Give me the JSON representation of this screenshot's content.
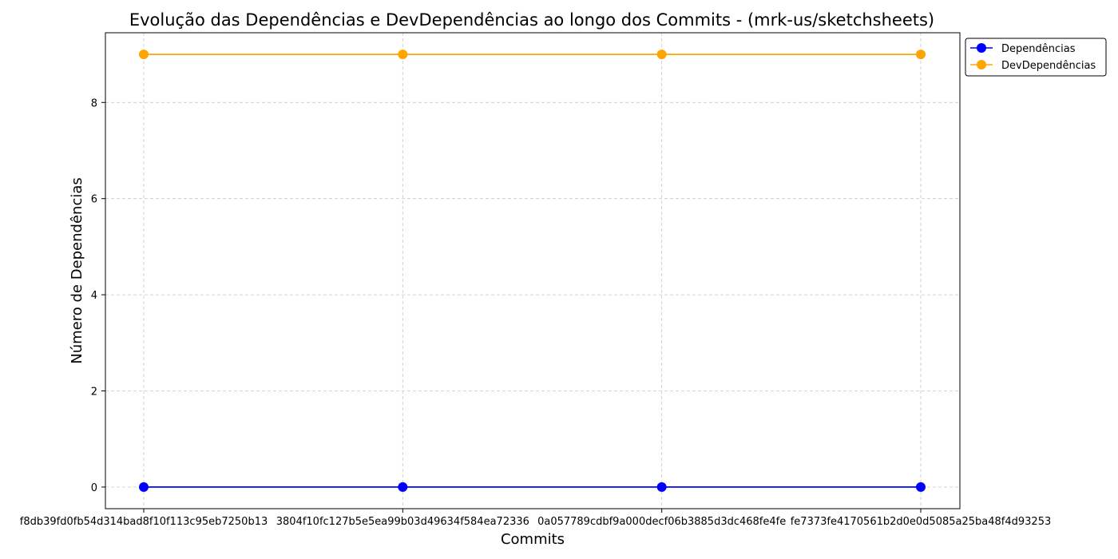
{
  "chart_data": {
    "type": "line",
    "title": "Evolução das Dependências e DevDependências ao longo dos Commits - (mrk-us/sketchsheets)",
    "xlabel": "Commits",
    "ylabel": "Número de Dependências",
    "categories": [
      "f8db39fd0fb54d314bad8f10f113c95eb7250b13",
      "3804f10fc127b5e5ea99b03d49634f584ea72336",
      "0a057789cdbf9a000decf06b3885d3dc468fe4fe",
      "fe7373fe4170561b2d0e0d5085a25ba48f4d93253"
    ],
    "series": [
      {
        "name": "Dependências",
        "values": [
          0,
          0,
          0,
          0
        ],
        "color": "#0000ff"
      },
      {
        "name": "DevDependências",
        "values": [
          9,
          9,
          9,
          9
        ],
        "color": "#ffa500"
      }
    ],
    "ylim": [
      -0.45,
      9.45
    ],
    "yticks": [
      0,
      2,
      4,
      6,
      8
    ],
    "grid": true,
    "grid_style": "dashed",
    "legend_position": "outside-top-right",
    "marker": "circle"
  }
}
